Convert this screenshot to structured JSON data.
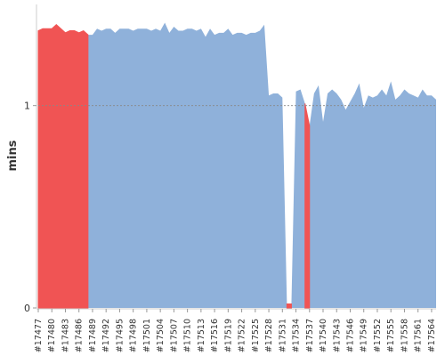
{
  "chart_data": {
    "type": "area",
    "ylabel": "mins",
    "ylim": [
      0,
      1.5
    ],
    "grid": "dotted line at 1",
    "reference_line": 1,
    "colors": {
      "regressed": "#f05454",
      "normal": "#8fb1da"
    },
    "ytick_labels": [
      "0",
      "1"
    ],
    "ytick_values": [
      0,
      1
    ],
    "x": [
      1477,
      1478,
      1479,
      1480,
      1481,
      1482,
      1483,
      1484,
      1485,
      1486,
      1487,
      1488,
      1489,
      1490,
      1491,
      1492,
      1493,
      1494,
      1495,
      1496,
      1497,
      1498,
      1499,
      1500,
      1501,
      1502,
      1503,
      1504,
      1505,
      1506,
      1507,
      1508,
      1509,
      1510,
      1511,
      1512,
      1513,
      1514,
      1515,
      1516,
      1517,
      1518,
      1519,
      1520,
      1521,
      1522,
      1523,
      1524,
      1525,
      1526,
      1527,
      1528,
      1529,
      1530,
      1531,
      1532,
      1533,
      1534,
      1535,
      1536,
      1537,
      1538,
      1539,
      1540,
      1541,
      1542,
      1543,
      1544,
      1545,
      1546,
      1547,
      1548,
      1549,
      1550,
      1551,
      1552,
      1553,
      1554,
      1555,
      1556,
      1557,
      1558,
      1559,
      1560,
      1561,
      1562,
      1563,
      1564,
      1565
    ],
    "xtick_labels": [
      "#17477",
      "#17480",
      "#17483",
      "#17486",
      "#17489",
      "#17492",
      "#17495",
      "#17498",
      "#17501",
      "#17504",
      "#17507",
      "#17510",
      "#17513",
      "#17516",
      "#17519",
      "#17522",
      "#17525",
      "#17528",
      "#17531",
      "#17534",
      "#17537",
      "#17540",
      "#17543",
      "#17546",
      "#17549",
      "#17552",
      "#17555",
      "#17558",
      "#17561",
      "#17564"
    ],
    "xtick_values": [
      1477,
      1480,
      1483,
      1486,
      1489,
      1492,
      1495,
      1498,
      1501,
      1504,
      1507,
      1510,
      1513,
      1516,
      1519,
      1522,
      1525,
      1528,
      1531,
      1534,
      1537,
      1540,
      1543,
      1546,
      1549,
      1552,
      1555,
      1558,
      1561,
      1564
    ],
    "y": [
      1.37,
      1.38,
      1.38,
      1.38,
      1.4,
      1.38,
      1.36,
      1.37,
      1.37,
      1.36,
      1.37,
      1.35,
      1.35,
      1.38,
      1.37,
      1.38,
      1.38,
      1.36,
      1.38,
      1.38,
      1.38,
      1.37,
      1.38,
      1.38,
      1.38,
      1.37,
      1.38,
      1.37,
      1.41,
      1.36,
      1.39,
      1.37,
      1.37,
      1.38,
      1.38,
      1.37,
      1.38,
      1.34,
      1.38,
      1.35,
      1.36,
      1.36,
      1.38,
      1.35,
      1.36,
      1.36,
      1.35,
      1.36,
      1.36,
      1.37,
      1.4,
      1.05,
      1.06,
      1.06,
      1.04,
      0.02,
      0.02,
      1.07,
      1.08,
      1.01,
      0.9,
      1.06,
      1.1,
      0.92,
      1.06,
      1.08,
      1.06,
      1.03,
      0.98,
      1.02,
      1.06,
      1.11,
      0.99,
      1.05,
      1.04,
      1.05,
      1.08,
      1.05,
      1.12,
      1.03,
      1.05,
      1.08,
      1.06,
      1.05,
      1.04,
      1.08,
      1.05,
      1.05,
      1.03
    ],
    "regressed_ranges": [
      [
        1477,
        1488
      ],
      [
        1532,
        1533
      ],
      [
        1536,
        1537
      ]
    ]
  }
}
